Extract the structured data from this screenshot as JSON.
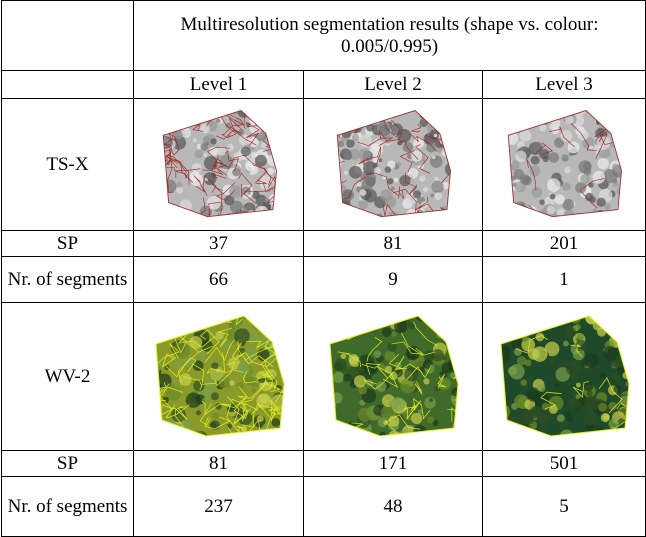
{
  "table": {
    "title": "Multiresolution segmentation results (shape vs. colour: 0.005/0.995)",
    "columns": [
      "Level 1",
      "Level 2",
      "Level 3"
    ],
    "rows": [
      {
        "label": "TS-X"
      },
      {
        "label": "SP",
        "cells": [
          37,
          81,
          201
        ]
      },
      {
        "label": "Nr. of segments",
        "cells": [
          66,
          9,
          1
        ]
      },
      {
        "label": "WV-2"
      },
      {
        "label": "SP",
        "cells": [
          81,
          171,
          501
        ]
      },
      {
        "label": "Nr. of segments",
        "cells": [
          237,
          48,
          5
        ]
      }
    ]
  }
}
